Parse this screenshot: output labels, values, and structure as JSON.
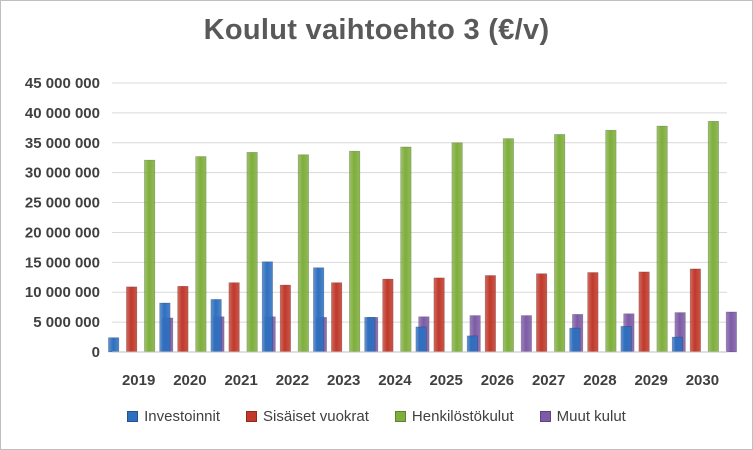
{
  "chart_data": {
    "type": "bar",
    "title": "Koulut vaihtoehto 3 (€/v)",
    "categories": [
      "2019",
      "2020",
      "2021",
      "2022",
      "2023",
      "2024",
      "2025",
      "2026",
      "2027",
      "2028",
      "2029",
      "2030"
    ],
    "ylim": [
      0,
      45000000
    ],
    "yticks": [
      {
        "value": 0,
        "label": "0"
      },
      {
        "value": 5000000,
        "label": "5 000 000"
      },
      {
        "value": 10000000,
        "label": "10 000 000"
      },
      {
        "value": 15000000,
        "label": "15 000 000"
      },
      {
        "value": 20000000,
        "label": "20 000 000"
      },
      {
        "value": 25000000,
        "label": "25 000 000"
      },
      {
        "value": 30000000,
        "label": "30 000 000"
      },
      {
        "value": 35000000,
        "label": "35 000 000"
      },
      {
        "value": 40000000,
        "label": "40 000 000"
      },
      {
        "value": 45000000,
        "label": "45 000 000"
      }
    ],
    "grid": true,
    "legend_position": "bottom",
    "series": [
      {
        "name": "Investoinnit",
        "color": "#2e6fbf",
        "values": [
          2400000,
          8200000,
          8800000,
          15100000,
          14100000,
          5800000,
          4200000,
          2700000,
          0,
          4000000,
          4300000,
          2500000
        ]
      },
      {
        "name": "Sisäiset vuokrat",
        "color": "#c0392b",
        "values": [
          10900000,
          11000000,
          11600000,
          11200000,
          11600000,
          12200000,
          12400000,
          12800000,
          13100000,
          13300000,
          13400000,
          13900000
        ]
      },
      {
        "name": "Henkilöstökulut",
        "color": "#7eae3c",
        "values": [
          32100000,
          32700000,
          33400000,
          33000000,
          33600000,
          34300000,
          35000000,
          35700000,
          36400000,
          37100000,
          37800000,
          38600000
        ]
      },
      {
        "name": "Muut kulut",
        "color": "#7d5ba6",
        "values": [
          5700000,
          5900000,
          5900000,
          5800000,
          5800000,
          5900000,
          6100000,
          6100000,
          6300000,
          6400000,
          6600000,
          6700000
        ]
      }
    ]
  }
}
